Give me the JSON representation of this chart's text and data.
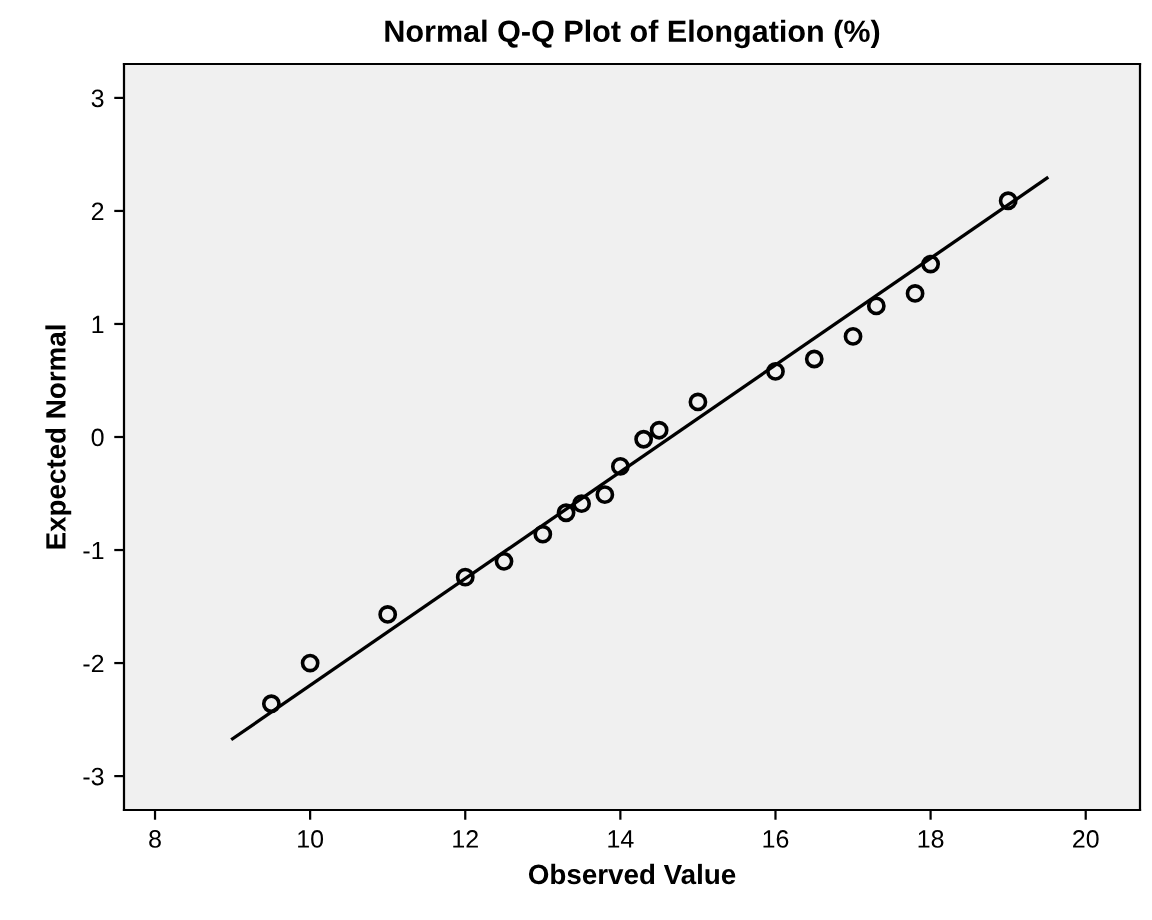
{
  "chart_data": {
    "type": "scatter",
    "title": "Normal Q-Q Plot of Elongation (%)",
    "xlabel": "Observed Value",
    "ylabel": "Expected Normal",
    "series": [
      {
        "marker": "circle",
        "color": "#000000",
        "x": [
          9.5,
          10,
          11,
          12,
          12.5,
          13,
          13.3,
          13.5,
          13.8,
          14,
          14.3,
          14.5,
          15,
          16,
          16.5,
          17,
          17.3,
          17.8,
          18,
          19
        ],
        "values": [
          -2.36,
          -2.0,
          -1.57,
          -1.24,
          -1.1,
          -0.86,
          -0.67,
          -0.59,
          -0.51,
          -0.26,
          -0.02,
          0.06,
          0.31,
          0.58,
          0.69,
          0.89,
          1.16,
          1.27,
          1.53,
          2.09
        ]
      },
      {
        "type": "line",
        "marker": "none",
        "color": "#000000",
        "x": [
          9.0,
          19.5
        ],
        "values": [
          -2.67,
          2.29
        ]
      }
    ],
    "xlim": [
      7.6,
      20.7
    ],
    "ylim": [
      -3.3,
      3.3
    ],
    "xticks": [
      8,
      10,
      12,
      14,
      16,
      18,
      20
    ],
    "yticks": [
      -3,
      -2,
      -1,
      0,
      1,
      2,
      3
    ],
    "grid": false,
    "legend": false
  }
}
